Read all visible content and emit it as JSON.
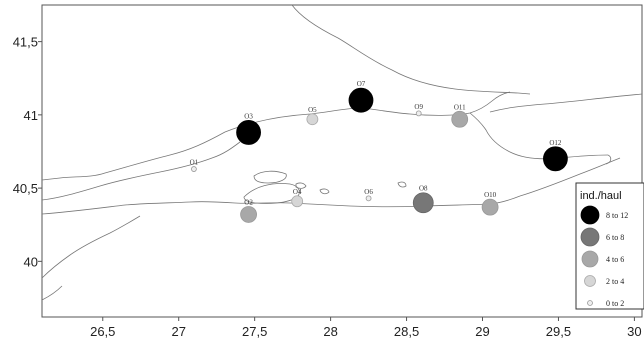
{
  "chart_data": {
    "type": "scatter",
    "xlim": [
      26.1,
      30.05
    ],
    "ylim": [
      39.62,
      41.75
    ],
    "x_ticks": [
      "26,5",
      "27",
      "27,5",
      "28",
      "28,5",
      "29",
      "29,5",
      "30"
    ],
    "x_tick_values": [
      26.5,
      27,
      27.5,
      28,
      28.5,
      29,
      29.5,
      30
    ],
    "y_ticks": [
      "41,5",
      "41",
      "40,5",
      "40"
    ],
    "y_tick_values": [
      41.5,
      41,
      40.5,
      40
    ],
    "stations": [
      {
        "label": "O1",
        "lon": 27.1,
        "lat": 40.63,
        "category": "0 to 2"
      },
      {
        "label": "O2",
        "lon": 27.46,
        "lat": 40.32,
        "category": "4 to 6"
      },
      {
        "label": "O3",
        "lon": 27.46,
        "lat": 40.88,
        "category": "8 to 12"
      },
      {
        "label": "O4",
        "lon": 27.78,
        "lat": 40.41,
        "category": "2 to 4"
      },
      {
        "label": "O5",
        "lon": 27.88,
        "lat": 40.97,
        "category": "2 to 4"
      },
      {
        "label": "O6",
        "lon": 28.25,
        "lat": 40.43,
        "category": "0 to 2"
      },
      {
        "label": "O7",
        "lon": 28.2,
        "lat": 41.1,
        "category": "8 to 12"
      },
      {
        "label": "O8",
        "lon": 28.61,
        "lat": 40.4,
        "category": "6 to 8"
      },
      {
        "label": "O9",
        "lon": 28.58,
        "lat": 41.01,
        "category": "0 to 2"
      },
      {
        "label": "O10",
        "lon": 29.05,
        "lat": 40.37,
        "category": "4 to 6"
      },
      {
        "label": "O11",
        "lon": 28.85,
        "lat": 40.97,
        "category": "4 to 6"
      },
      {
        "label": "O12",
        "lon": 29.48,
        "lat": 40.7,
        "category": "8 to 12"
      }
    ],
    "legend": {
      "title": "ind./haul",
      "placement": "right",
      "items": [
        {
          "label": "8 to 12",
          "color": "#000000"
        },
        {
          "label": "6 to 8",
          "color": "#777777"
        },
        {
          "label": "4 to 6",
          "color": "#a8a8a8"
        },
        {
          "label": "2 to 4",
          "color": "#d6d6d6"
        },
        {
          "label": "0 to 2",
          "color": "#eeeeee"
        }
      ]
    }
  }
}
